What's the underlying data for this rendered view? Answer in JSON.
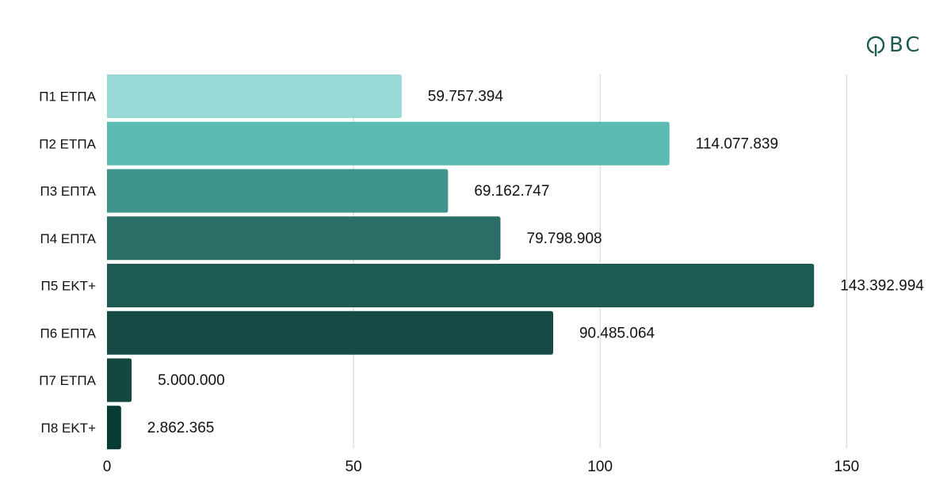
{
  "logo": {
    "letters": "BC"
  },
  "chart_data": {
    "type": "bar",
    "orientation": "horizontal",
    "categories": [
      "Π1 ΕΤΠΑ",
      "Π2 ΕΤΠΑ",
      "Π3 ΕΠΤΑ",
      "Π4 ΕΠΤΑ",
      "Π5 ΕΚΤ+",
      "Π6 ΕΠΤΑ",
      "Π7 ΕΤΠΑ",
      "Π8 ΕΚΤ+"
    ],
    "values": [
      59757394,
      114077839,
      69162747,
      79798908,
      143392994,
      90485064,
      5000000,
      2862365
    ],
    "value_labels": [
      "59.757.394",
      "114.077.839",
      "69.162.747",
      "79.798.908",
      "143.392.994",
      "90.485.064",
      "5.000.000",
      "2.862.365"
    ],
    "x_ticks": [
      0,
      50,
      100,
      150
    ],
    "x_unit_scale": 1000000,
    "xlim": [
      0,
      150
    ],
    "grid": true,
    "colors": [
      "#98d9d6",
      "#5cbcb1",
      "#3e948a",
      "#2b6e67",
      "#1d5a53",
      "#164a45",
      "#134841",
      "#063a35"
    ]
  }
}
